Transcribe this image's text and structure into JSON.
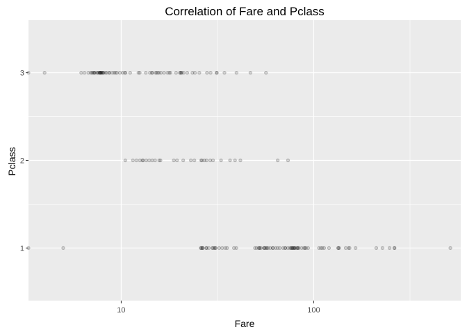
{
  "chart_data": {
    "type": "scatter",
    "title": "Correlation of Fare and Pclass",
    "xlabel": "Fare",
    "ylabel": "Pclass",
    "x_scale": "log10",
    "xlim": [
      3.3,
      580
    ],
    "ylim": [
      0.4,
      3.6
    ],
    "x_ticks": [
      10,
      100
    ],
    "x_tick_labels": [
      "10",
      "100"
    ],
    "y_ticks": [
      1,
      2,
      3
    ],
    "y_tick_labels": [
      "1",
      "2",
      "3"
    ],
    "grid": true,
    "legend": "none",
    "point_color": "#000000",
    "point_alpha": 0.15,
    "panel_color": "#ebebeb",
    "grid_color": "#ffffff",
    "series": [
      {
        "pclass": 1,
        "fares": [
          0,
          5.0,
          25.9,
          26.0,
          26.3,
          26.5,
          26.55,
          27.7,
          27.72,
          28.5,
          29.7,
          30.0,
          30.5,
          30.7,
          31.0,
          32.3,
          33.5,
          34.7,
          35.5,
          38.5,
          39.6,
          49.5,
          50.5,
          51.9,
          52.0,
          52.55,
          53.1,
          55.0,
          55.4,
          55.9,
          56.9,
          57.0,
          57.98,
          59.4,
          61.2,
          61.4,
          63.4,
          65.0,
          66.6,
          69.3,
          71.0,
          71.3,
          73.5,
          75.25,
          76.3,
          76.7,
          77.3,
          77.96,
          78.3,
          79.2,
          79.65,
          80.0,
          81.9,
          82.2,
          83.2,
          83.5,
          86.5,
          89.1,
          90.0,
          91.1,
          93.5,
          106.4,
          108.9,
          110.9,
          113.3,
          120.0,
          133.7,
          134.5,
          135.6,
          146.5,
          151.6,
          153.5,
          164.9,
          211.3,
          227.5,
          247.5,
          262.4,
          263.0,
          512.3
        ]
      },
      {
        "pclass": 2,
        "fares": [
          10.5,
          11.5,
          12.0,
          12.5,
          12.9,
          13.0,
          13.5,
          14.0,
          14.5,
          15.0,
          15.75,
          16.0,
          18.75,
          19.5,
          21.0,
          23.0,
          24.0,
          26.0,
          26.25,
          27.0,
          27.75,
          29.0,
          30.0,
          33.0,
          36.75,
          39.0,
          41.6,
          65.0,
          73.5
        ]
      },
      {
        "pclass": 3,
        "fares": [
          0,
          4.0,
          6.2,
          6.45,
          6.75,
          6.95,
          7.05,
          7.13,
          7.23,
          7.25,
          7.31,
          7.5,
          7.55,
          7.65,
          7.73,
          7.75,
          7.78,
          7.8,
          7.85,
          7.9,
          7.92,
          8.03,
          8.05,
          8.1,
          8.3,
          8.4,
          8.66,
          8.7,
          9.0,
          9.2,
          9.35,
          9.5,
          9.83,
          10.17,
          10.46,
          10.52,
          11.13,
          12.29,
          12.48,
          13.42,
          14.1,
          14.45,
          14.5,
          15.1,
          15.25,
          15.5,
          15.74,
          16.1,
          16.7,
          17.4,
          17.8,
          18.0,
          19.26,
          20.21,
          20.25,
          20.52,
          20.58,
          21.08,
          22.03,
          23.45,
          24.15,
          25.47,
          27.9,
          29.13,
          31.27,
          31.39,
          34.38,
          39.69,
          46.9,
          56.5
        ]
      }
    ]
  }
}
